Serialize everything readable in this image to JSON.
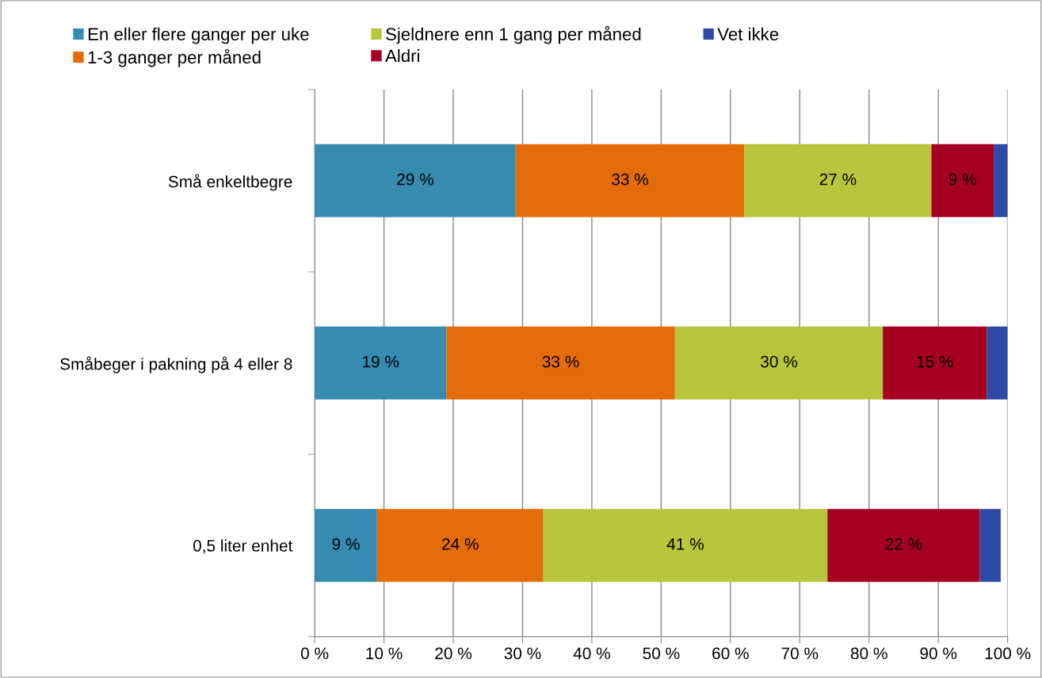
{
  "chart_data": {
    "type": "bar",
    "orientation": "horizontal",
    "stacked": true,
    "categories": [
      "Små enkeltbegre",
      "Småbeger i pakning på 4 eller 8",
      "0,5 liter enhet"
    ],
    "series": [
      {
        "name": "En eller flere ganger per uke",
        "color": "#378bb0",
        "values": [
          29,
          19,
          9
        ],
        "value_labels": [
          "29 %",
          "19 %",
          "9 %"
        ]
      },
      {
        "name": "1-3 ganger per måned",
        "color": "#e46c0a",
        "values": [
          33,
          33,
          24
        ],
        "value_labels": [
          "33 %",
          "33 %",
          "24 %"
        ]
      },
      {
        "name": "Sjeldnere enn 1 gang per måned",
        "color": "#b7c63c",
        "values": [
          27,
          30,
          41
        ],
        "value_labels": [
          "27 %",
          "30 %",
          "41 %"
        ]
      },
      {
        "name": "Aldri",
        "color": "#a50021",
        "values": [
          9,
          15,
          22
        ],
        "value_labels": [
          "9 %",
          "15 %",
          "22 %"
        ]
      },
      {
        "name": "Vet ikke",
        "color": "#2f4aa5",
        "values": [
          2,
          3,
          3
        ],
        "value_labels": [
          null,
          null,
          null
        ]
      }
    ],
    "xlim": [
      0,
      100
    ],
    "xticks": [
      {
        "value": 0,
        "label": "0 %"
      },
      {
        "value": 10,
        "label": "10 %"
      },
      {
        "value": 20,
        "label": "20 %"
      },
      {
        "value": 30,
        "label": "30 %"
      },
      {
        "value": 40,
        "label": "40 %"
      },
      {
        "value": 50,
        "label": "50 %"
      },
      {
        "value": 60,
        "label": "60 %"
      },
      {
        "value": 70,
        "label": "70 %"
      },
      {
        "value": 80,
        "label": "80 %"
      },
      {
        "value": 90,
        "label": "90 %"
      },
      {
        "value": 100,
        "label": "100 %"
      }
    ],
    "grid": "x",
    "legend": "top"
  }
}
